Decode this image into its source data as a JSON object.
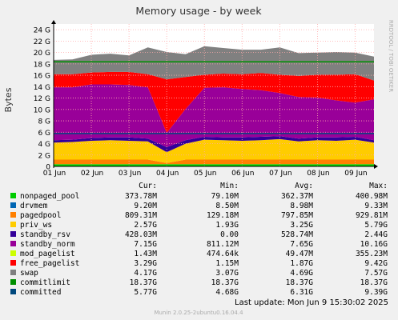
{
  "chart_data": {
    "type": "area",
    "title": "Memory usage - by week",
    "ylabel": "Bytes",
    "side_label": "RRDTOOL / TOBI OETIKER",
    "x_ticks": [
      "01 Jun",
      "02 Jun",
      "03 Jun",
      "04 Jun",
      "05 Jun",
      "06 Jun",
      "07 Jun",
      "08 Jun",
      "09 Jun"
    ],
    "y_ticks": [
      "0",
      "2 G",
      "4 G",
      "6 G",
      "8 G",
      "10 G",
      "12 G",
      "14 G",
      "16 G",
      "18 G",
      "20 G",
      "22 G",
      "24 G"
    ],
    "ylim": [
      0,
      25
    ],
    "y_unit": "G",
    "grid": true,
    "x_start": "2025-06-01",
    "x_end": "2025-06-09T12:00",
    "series": [
      {
        "name": "nonpaged_pool",
        "color": "#00cc00",
        "approx": [
          0.38,
          0.38,
          0.38,
          0.38,
          0.38,
          0.38,
          0.38,
          0.38,
          0.38,
          0.38,
          0.38,
          0.38,
          0.38,
          0.38,
          0.38,
          0.38,
          0.38,
          0.38
        ]
      },
      {
        "name": "drvmem",
        "color": "#0066b3",
        "approx": [
          0.01,
          0.01,
          0.01,
          0.01,
          0.01,
          0.01,
          0.01,
          0.01,
          0.01,
          0.01,
          0.01,
          0.01,
          0.01,
          0.01,
          0.01,
          0.01,
          0.01,
          0.01
        ]
      },
      {
        "name": "pagedpool",
        "color": "#ff8000",
        "approx": [
          0.8,
          0.8,
          0.8,
          0.8,
          0.8,
          0.8,
          0.2,
          0.8,
          0.8,
          0.8,
          0.8,
          0.8,
          0.8,
          0.8,
          0.8,
          0.8,
          0.8,
          0.8
        ]
      },
      {
        "name": "priv_ws",
        "color": "#ffcc00",
        "approx": [
          3.0,
          3.1,
          3.3,
          3.4,
          3.3,
          3.2,
          1.9,
          2.8,
          3.5,
          3.4,
          3.3,
          3.4,
          3.6,
          3.2,
          3.4,
          3.3,
          3.5,
          3.0
        ]
      },
      {
        "name": "standby_rsv",
        "color": "#330099",
        "approx": [
          0.4,
          0.4,
          0.5,
          0.5,
          0.6,
          0.5,
          0.9,
          0.6,
          0.5,
          0.5,
          0.6,
          0.6,
          0.5,
          0.5,
          0.5,
          0.6,
          0.5,
          0.4
        ]
      },
      {
        "name": "standby_norm",
        "color": "#990099",
        "approx": [
          9.3,
          9.2,
          9.4,
          9.3,
          9.2,
          9.0,
          2.5,
          5.5,
          8.6,
          8.8,
          8.5,
          8.2,
          7.6,
          7.3,
          7.0,
          6.5,
          6.0,
          7.2
        ]
      },
      {
        "name": "mod_pagelist",
        "color": "#ccff00",
        "approx": [
          0.0,
          0.0,
          0.0,
          0.0,
          0.0,
          0.0,
          0.0,
          0.0,
          0.0,
          0.0,
          0.0,
          0.0,
          0.0,
          0.0,
          0.0,
          0.0,
          0.0,
          0.0
        ]
      },
      {
        "name": "free_pagelist",
        "color": "#ff0000",
        "approx": [
          2.3,
          2.3,
          2.1,
          2.2,
          2.3,
          2.3,
          9.4,
          5.6,
          2.3,
          2.4,
          2.6,
          3.0,
          3.2,
          3.7,
          4.0,
          4.5,
          5.0,
          3.3
        ]
      },
      {
        "name": "swap",
        "color": "#808080",
        "approx": [
          2.5,
          2.6,
          3.1,
          3.2,
          2.9,
          4.7,
          4.8,
          4.0,
          5.0,
          4.5,
          4.3,
          4.1,
          4.8,
          4.0,
          3.9,
          4.0,
          3.8,
          4.2
        ]
      }
    ],
    "lines": [
      {
        "name": "commitlimit",
        "color": "#008f00",
        "value": 18.37
      },
      {
        "name": "committed",
        "color": "#00487d",
        "value": 5.77
      }
    ]
  },
  "legend": {
    "headers": {
      "cur": "Cur:",
      "min": "Min:",
      "avg": "Avg:",
      "max": "Max:"
    },
    "rows": [
      {
        "name": "nonpaged_pool",
        "color": "#00cc00",
        "cur": "373.78M",
        "min": "79.10M",
        "avg": "362.37M",
        "max": "400.98M"
      },
      {
        "name": "drvmem",
        "color": "#0066b3",
        "cur": "9.20M",
        "min": "8.50M",
        "avg": "8.98M",
        "max": "9.33M"
      },
      {
        "name": "pagedpool",
        "color": "#ff8000",
        "cur": "809.31M",
        "min": "129.18M",
        "avg": "797.85M",
        "max": "929.81M"
      },
      {
        "name": "priv_ws",
        "color": "#ffcc00",
        "cur": "2.57G",
        "min": "1.93G",
        "avg": "3.25G",
        "max": "5.79G"
      },
      {
        "name": "standby_rsv",
        "color": "#330099",
        "cur": "428.03M",
        "min": "0.00",
        "avg": "528.74M",
        "max": "2.44G"
      },
      {
        "name": "standby_norm",
        "color": "#990099",
        "cur": "7.15G",
        "min": "811.12M",
        "avg": "7.65G",
        "max": "10.16G"
      },
      {
        "name": "mod_pagelist",
        "color": "#ccff00",
        "cur": "1.43M",
        "min": "474.64k",
        "avg": "49.47M",
        "max": "355.23M"
      },
      {
        "name": "free_pagelist",
        "color": "#ff0000",
        "cur": "3.29G",
        "min": "1.15M",
        "avg": "1.87G",
        "max": "9.42G"
      },
      {
        "name": "swap",
        "color": "#808080",
        "cur": "4.17G",
        "min": "3.07G",
        "avg": "4.69G",
        "max": "7.57G"
      },
      {
        "name": "commitlimit",
        "color": "#008f00",
        "cur": "18.37G",
        "min": "18.37G",
        "avg": "18.37G",
        "max": "18.37G"
      },
      {
        "name": "committed",
        "color": "#00487d",
        "cur": "5.77G",
        "min": "4.68G",
        "avg": "6.31G",
        "max": "9.39G"
      }
    ]
  },
  "last_update": "Last update:  Mon Jun  9 15:30:02 2025",
  "footer": "Munin 2.0.25-2ubuntu0.16.04.4"
}
